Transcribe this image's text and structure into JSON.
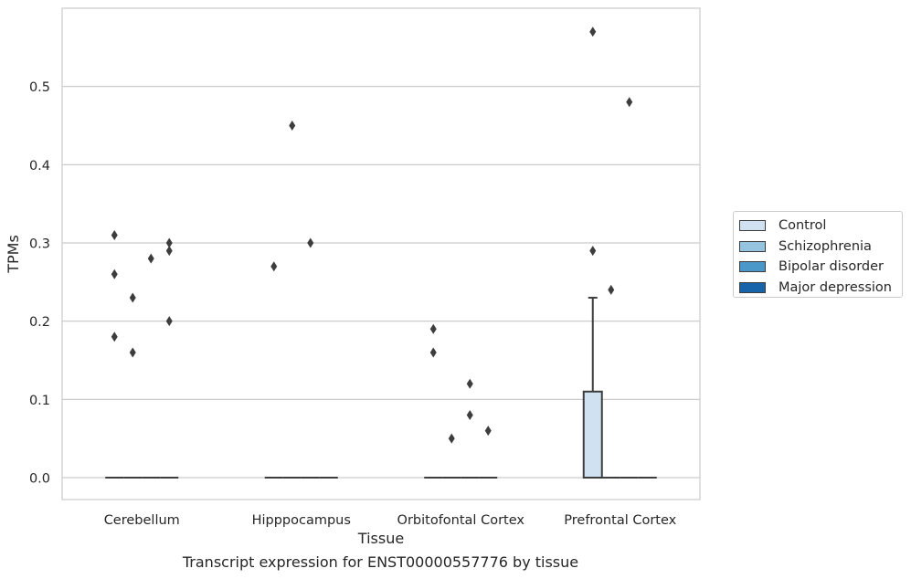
{
  "caption": "Transcript expression for ENST00000557776 by tissue",
  "chart_data": {
    "type": "box",
    "xlabel": "Tissue",
    "ylabel": "TPMs",
    "ylim": [
      -0.028,
      0.6
    ],
    "yticks": [
      0.0,
      0.1,
      0.2,
      0.3,
      0.4,
      0.5
    ],
    "ytick_labels": [
      "0.0",
      "0.1",
      "0.2",
      "0.3",
      "0.4",
      "0.5"
    ],
    "grid": true,
    "legend_position": "right",
    "categories": [
      "Cerebellum",
      "Hipppocampus",
      "Orbitofontal Cortex",
      "Prefrontal Cortex"
    ],
    "series": [
      {
        "name": "Control",
        "color": "#d0e1f2"
      },
      {
        "name": "Schizophrenia",
        "color": "#94c4df"
      },
      {
        "name": "Bipolar disorder",
        "color": "#4a98c9"
      },
      {
        "name": "Major depression",
        "color": "#1764ab"
      }
    ],
    "boxes": [
      {
        "category": "Cerebellum",
        "series": "Control",
        "q1": 0,
        "median": 0,
        "q3": 0,
        "whisker_low": 0,
        "whisker_high": 0,
        "outliers": [
          0.18,
          0.26,
          0.31
        ]
      },
      {
        "category": "Cerebellum",
        "series": "Schizophrenia",
        "q1": 0,
        "median": 0,
        "q3": 0,
        "whisker_low": 0,
        "whisker_high": 0,
        "outliers": [
          0.16,
          0.23
        ]
      },
      {
        "category": "Cerebellum",
        "series": "Bipolar disorder",
        "q1": 0,
        "median": 0,
        "q3": 0,
        "whisker_low": 0,
        "whisker_high": 0,
        "outliers": [
          0.28
        ]
      },
      {
        "category": "Cerebellum",
        "series": "Major depression",
        "q1": 0,
        "median": 0,
        "q3": 0,
        "whisker_low": 0,
        "whisker_high": 0,
        "outliers": [
          0.2,
          0.29,
          0.3
        ]
      },
      {
        "category": "Hipppocampus",
        "series": "Control",
        "q1": 0,
        "median": 0,
        "q3": 0,
        "whisker_low": 0,
        "whisker_high": 0,
        "outliers": [
          0.27
        ]
      },
      {
        "category": "Hipppocampus",
        "series": "Schizophrenia",
        "q1": 0,
        "median": 0,
        "q3": 0,
        "whisker_low": 0,
        "whisker_high": 0,
        "outliers": [
          0.45
        ]
      },
      {
        "category": "Hipppocampus",
        "series": "Bipolar disorder",
        "q1": 0,
        "median": 0,
        "q3": 0,
        "whisker_low": 0,
        "whisker_high": 0,
        "outliers": [
          0.3
        ]
      },
      {
        "category": "Hipppocampus",
        "series": "Major depression",
        "q1": 0,
        "median": 0,
        "q3": 0,
        "whisker_low": 0,
        "whisker_high": 0,
        "outliers": []
      },
      {
        "category": "Orbitofontal Cortex",
        "series": "Control",
        "q1": 0,
        "median": 0,
        "q3": 0,
        "whisker_low": 0,
        "whisker_high": 0,
        "outliers": [
          0.16,
          0.19
        ]
      },
      {
        "category": "Orbitofontal Cortex",
        "series": "Schizophrenia",
        "q1": 0,
        "median": 0,
        "q3": 0,
        "whisker_low": 0,
        "whisker_high": 0,
        "outliers": [
          0.05
        ]
      },
      {
        "category": "Orbitofontal Cortex",
        "series": "Bipolar disorder",
        "q1": 0,
        "median": 0,
        "q3": 0,
        "whisker_low": 0,
        "whisker_high": 0,
        "outliers": [
          0.08,
          0.12
        ]
      },
      {
        "category": "Orbitofontal Cortex",
        "series": "Major depression",
        "q1": 0,
        "median": 0,
        "q3": 0,
        "whisker_low": 0,
        "whisker_high": 0,
        "outliers": [
          0.06
        ]
      },
      {
        "category": "Prefrontal Cortex",
        "series": "Control",
        "q1": 0,
        "median": 0,
        "q3": 0.11,
        "whisker_low": 0,
        "whisker_high": 0.23,
        "outliers": [
          0.29,
          0.57
        ]
      },
      {
        "category": "Prefrontal Cortex",
        "series": "Schizophrenia",
        "q1": 0,
        "median": 0,
        "q3": 0,
        "whisker_low": 0,
        "whisker_high": 0,
        "outliers": [
          0.24
        ]
      },
      {
        "category": "Prefrontal Cortex",
        "series": "Bipolar disorder",
        "q1": 0,
        "median": 0,
        "q3": 0,
        "whisker_low": 0,
        "whisker_high": 0,
        "outliers": [
          0.48
        ]
      },
      {
        "category": "Prefrontal Cortex",
        "series": "Major depression",
        "q1": 0,
        "median": 0,
        "q3": 0,
        "whisker_low": 0,
        "whisker_high": 0,
        "outliers": []
      }
    ]
  }
}
